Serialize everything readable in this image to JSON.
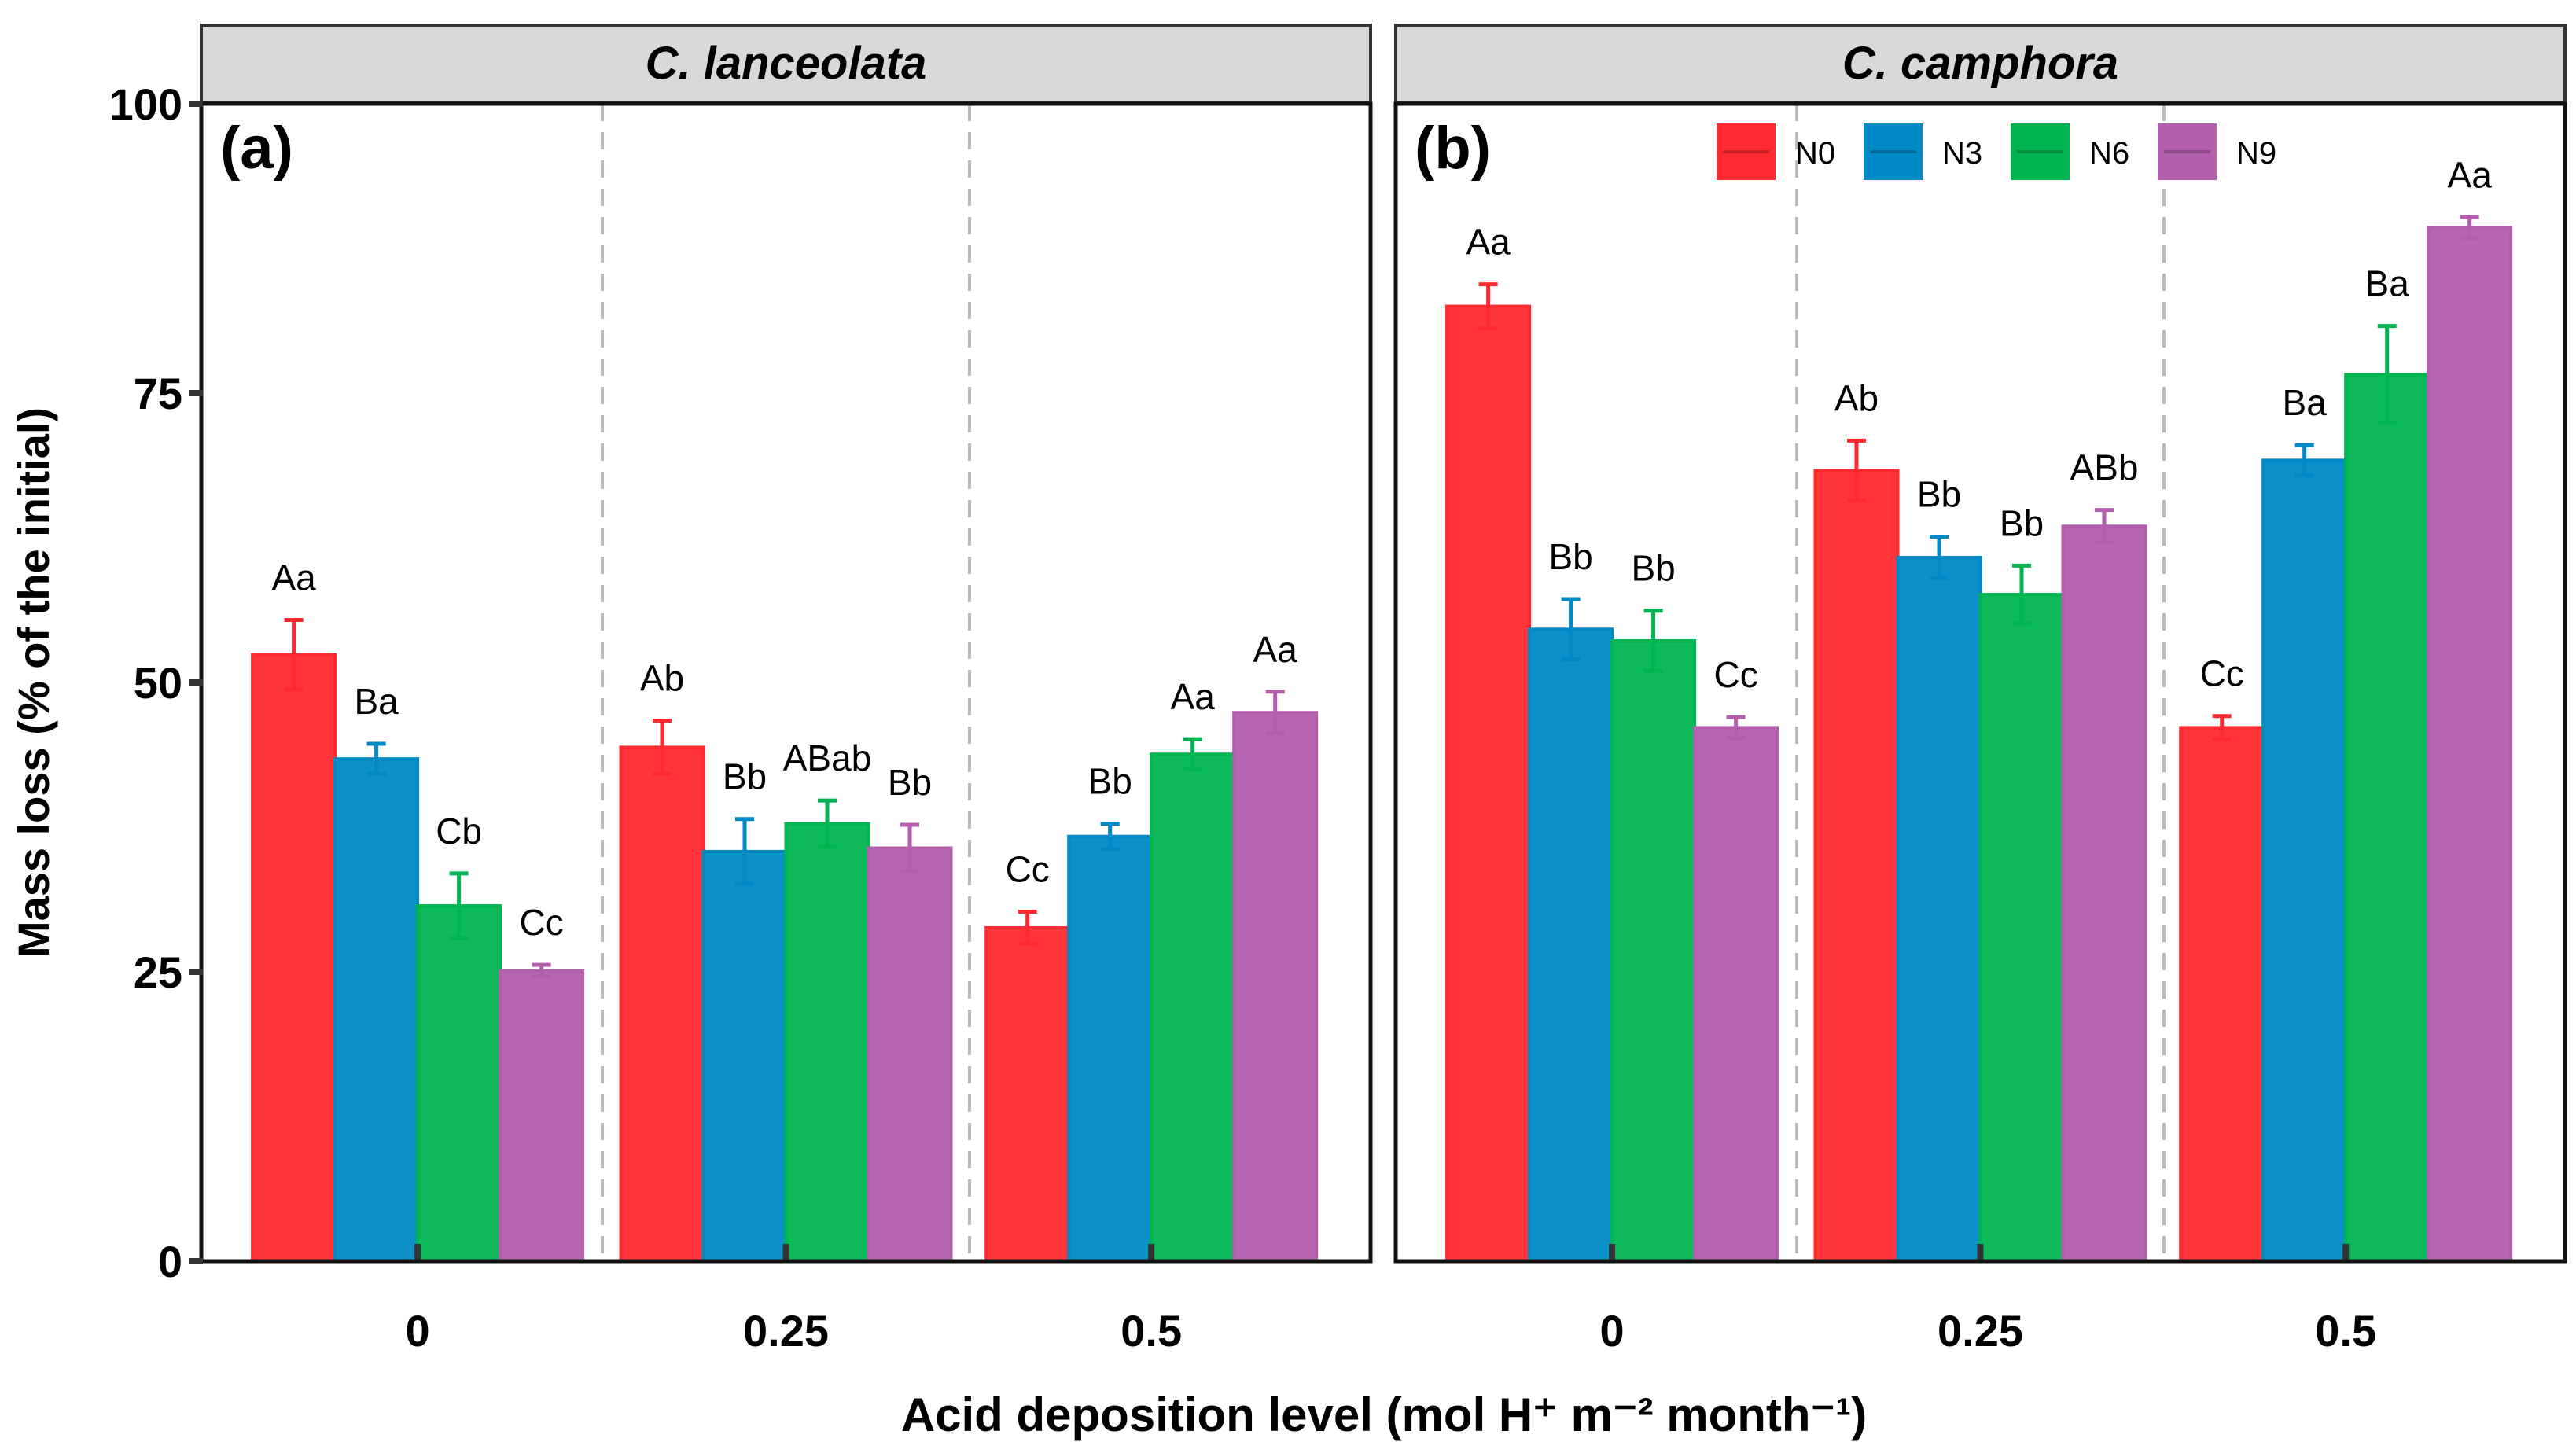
{
  "chart_data": {
    "type": "bar",
    "ylabel": "Mass loss (% of the initial)",
    "xlabel": "Acid deposition level (mol H⁺ m⁻² month⁻¹)",
    "ylim": [
      0,
      100
    ],
    "yticks": [
      0,
      25,
      50,
      75,
      100
    ],
    "categories": [
      "0",
      "0.25",
      "0.5"
    ],
    "legend": {
      "placement": "top-right of panel (b)",
      "entries": [
        "N0",
        "N3",
        "N6",
        "N9"
      ]
    },
    "colors": {
      "N0": "#ff2a2f",
      "N3": "#0089c4",
      "N6": "#00b551",
      "N9": "#b35fad"
    },
    "panels": [
      {
        "label": "(a)",
        "species": "C. lanceolata",
        "series": [
          {
            "name": "N0",
            "values": [
              52.4,
              44.4,
              28.8
            ],
            "errors": [
              3.0,
              2.3,
              1.4
            ],
            "letters": [
              "Aa",
              "Ab",
              "Cc"
            ]
          },
          {
            "name": "N3",
            "values": [
              43.4,
              35.4,
              36.7
            ],
            "errors": [
              1.3,
              2.8,
              1.1
            ],
            "letters": [
              "Ba",
              "Bb",
              "Bb"
            ]
          },
          {
            "name": "N6",
            "values": [
              30.7,
              37.8,
              43.8
            ],
            "errors": [
              2.8,
              2.0,
              1.3
            ],
            "letters": [
              "Cb",
              "ABab",
              "Aa"
            ]
          },
          {
            "name": "N9",
            "values": [
              25.1,
              35.7,
              47.4
            ],
            "errors": [
              0.5,
              2.0,
              1.8
            ],
            "letters": [
              "Cc",
              "Bb",
              "Aa"
            ]
          }
        ]
      },
      {
        "label": "(b)",
        "species": "C. camphora",
        "series": [
          {
            "name": "N0",
            "values": [
              82.5,
              68.3,
              46.1
            ],
            "errors": [
              1.9,
              2.6,
              1.0
            ],
            "letters": [
              "Aa",
              "Ab",
              "Cc"
            ]
          },
          {
            "name": "N3",
            "values": [
              54.6,
              60.8,
              69.2
            ],
            "errors": [
              2.6,
              1.8,
              1.3
            ],
            "letters": [
              "Bb",
              "Bb",
              "Ba"
            ]
          },
          {
            "name": "N6",
            "values": [
              53.6,
              57.6,
              76.6
            ],
            "errors": [
              2.6,
              2.5,
              4.2
            ],
            "letters": [
              "Bb",
              "Bb",
              "Ba"
            ]
          },
          {
            "name": "N9",
            "values": [
              46.1,
              63.5,
              89.3
            ],
            "errors": [
              0.9,
              1.4,
              0.9
            ],
            "letters": [
              "Cc",
              "ABb",
              "Aa"
            ]
          }
        ]
      }
    ]
  }
}
